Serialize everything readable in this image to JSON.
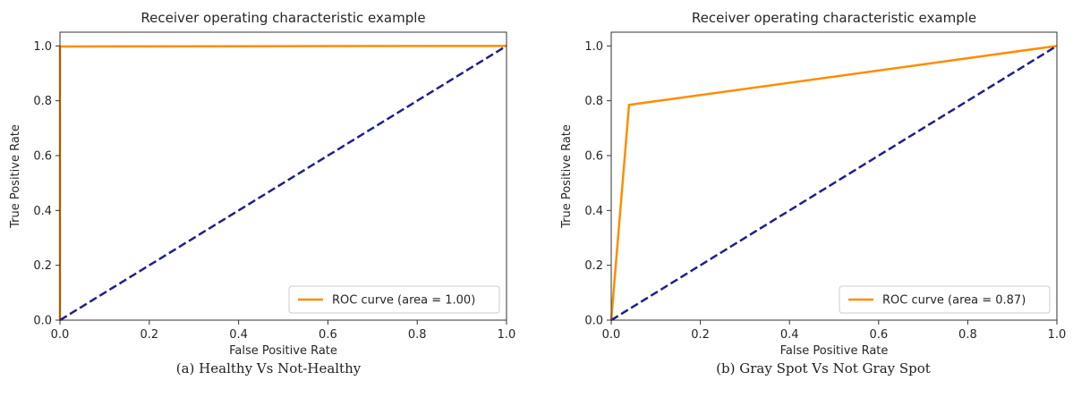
{
  "chart_data": [
    {
      "type": "line",
      "title": "Receiver operating characteristic example",
      "xlabel": "False Positive Rate",
      "ylabel": "True Positive Rate",
      "xlim": [
        0.0,
        1.0
      ],
      "ylim": [
        0.0,
        1.05
      ],
      "xticks": [
        "0.0",
        "0.2",
        "0.4",
        "0.6",
        "0.8",
        "1.0"
      ],
      "yticks": [
        "0.0",
        "0.2",
        "0.4",
        "0.6",
        "0.8",
        "1.0"
      ],
      "grid": false,
      "legend_position": "lower-right",
      "caption": "(a) Healthy Vs Not-Healthy",
      "series": [
        {
          "name": "ROC curve (area = 1.00)",
          "color": "#ff8c00",
          "style": "solid",
          "x": [
            0.0,
            0.0,
            1.0
          ],
          "y": [
            0.0,
            0.998,
            1.0
          ]
        },
        {
          "color": "#1f1f8f",
          "style": "dashed",
          "x": [
            0.0,
            1.0
          ],
          "y": [
            0.0,
            1.0
          ]
        }
      ]
    },
    {
      "type": "line",
      "title": "Receiver operating characteristic example",
      "xlabel": "False Positive Rate",
      "ylabel": "True Positive Rate",
      "xlim": [
        0.0,
        1.0
      ],
      "ylim": [
        0.0,
        1.05
      ],
      "xticks": [
        "0.0",
        "0.2",
        "0.4",
        "0.6",
        "0.8",
        "1.0"
      ],
      "yticks": [
        "0.0",
        "0.2",
        "0.4",
        "0.6",
        "0.8",
        "1.0"
      ],
      "grid": false,
      "legend_position": "lower-right",
      "caption": "(b) Gray Spot Vs Not Gray Spot",
      "series": [
        {
          "name": "ROC curve (area = 0.87)",
          "color": "#ff8c00",
          "style": "solid",
          "x": [
            0.0,
            0.04,
            1.0
          ],
          "y": [
            0.0,
            0.785,
            1.0
          ]
        },
        {
          "color": "#1f1f8f",
          "style": "dashed",
          "x": [
            0.0,
            1.0
          ],
          "y": [
            0.0,
            1.0
          ]
        }
      ]
    }
  ]
}
